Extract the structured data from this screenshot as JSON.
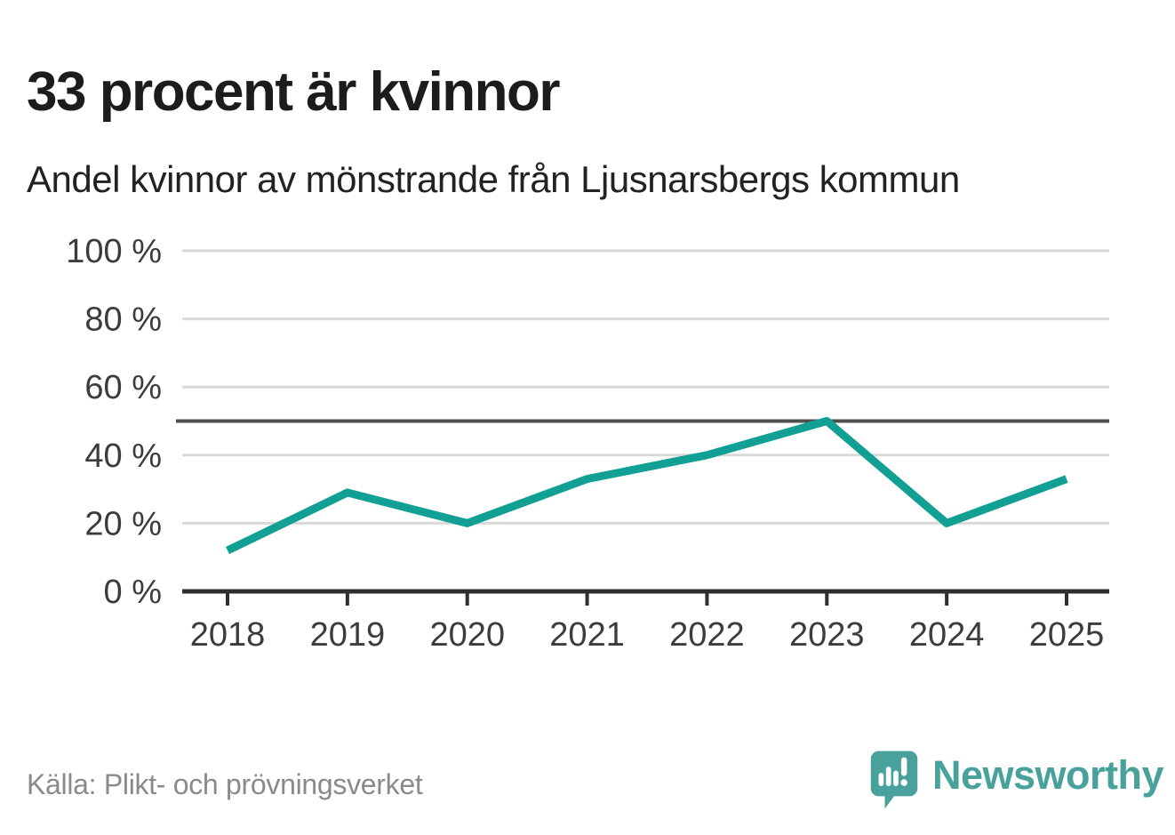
{
  "header": {
    "title": "33 procent är kvinnor",
    "subtitle": "Andel kvinnor av mönstrande från Ljusnarsbergs kommun"
  },
  "footer": {
    "source": "Källa: Plikt- och prövningsverket",
    "brand": "Newsworthy"
  },
  "chart_data": {
    "type": "line",
    "title": "33 procent är kvinnor",
    "subtitle": "Andel kvinnor av mönstrande från Ljusnarsbergs kommun",
    "source": "Källa: Plikt- och prövningsverket",
    "categories": [
      "2018",
      "2019",
      "2020",
      "2021",
      "2022",
      "2023",
      "2024",
      "2025"
    ],
    "series": [
      {
        "name": "Andel kvinnor av mönstrande",
        "values": [
          12,
          29,
          20,
          33,
          40,
          50,
          20,
          33
        ]
      }
    ],
    "unit": "%",
    "xlabel": "",
    "ylabel": "",
    "ylim": [
      0,
      100
    ],
    "yticks": [
      0,
      20,
      40,
      60,
      80,
      100
    ],
    "ytick_suffix": " %",
    "reference_line": 50,
    "grid": true,
    "legend": "none",
    "colors": {
      "line": "#12a094",
      "grid": "#d9d9d9",
      "reference_line": "#4f4f4f",
      "axis": "#2f2f2f",
      "tick_text": "#3c3c3c",
      "brand": "#48a19b"
    }
  }
}
